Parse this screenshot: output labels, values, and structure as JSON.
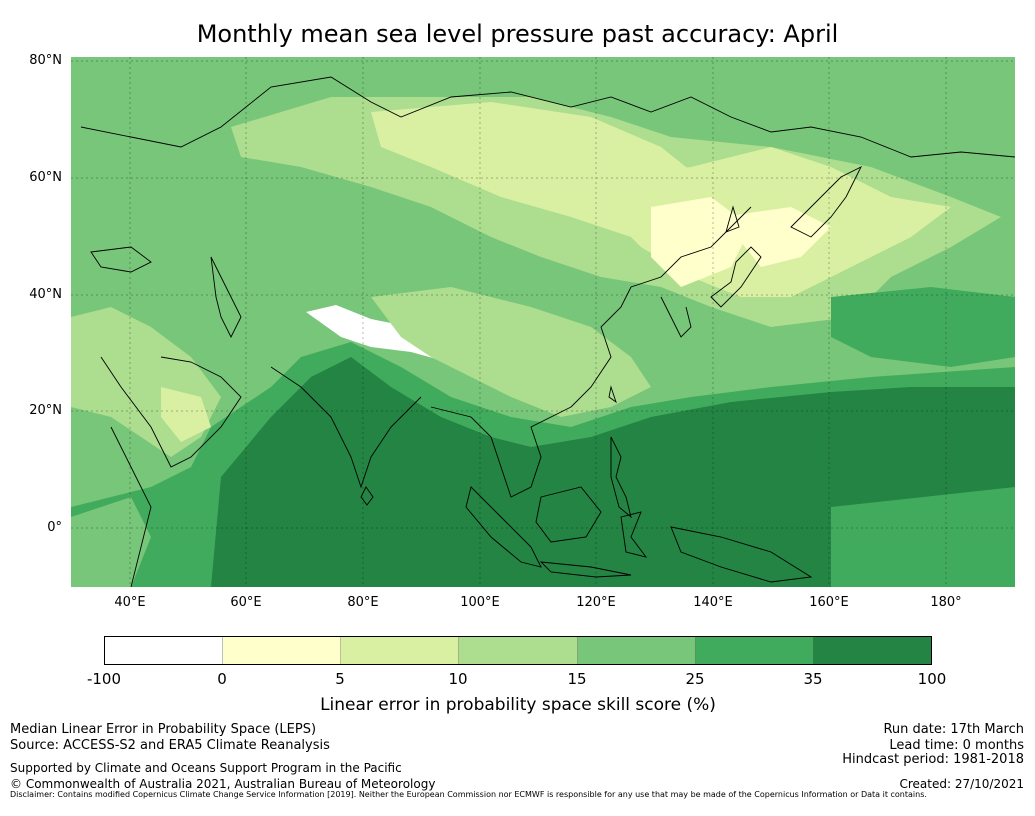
{
  "title": "Monthly mean sea level pressure past accuracy: April",
  "map": {
    "lat_labels": [
      "80°N",
      "60°N",
      "40°N",
      "20°N",
      "0°"
    ],
    "lon_labels": [
      "40°E",
      "60°E",
      "80°E",
      "100°E",
      "120°E",
      "140°E",
      "160°E",
      "180°"
    ]
  },
  "colorbar": {
    "ticks": [
      "-100",
      "0",
      "5",
      "10",
      "15",
      "25",
      "35",
      "100"
    ],
    "colors": [
      "#ffffff",
      "#ffffcc",
      "#d9f0a3",
      "#addd8e",
      "#78c679",
      "#41ab5d",
      "#238443"
    ],
    "label": "Linear error in probability space skill score (%)"
  },
  "footer": {
    "line1": "Median Linear Error in Probability Space (LEPS)",
    "line2": "Source: ACCESS-S2 and ERA5 Climate Reanalysis",
    "support": "Supported by Climate and Oceans Support Program in the Pacific",
    "copyright": "© Commonwealth of Australia 2021, Australian Bureau of Meteorology",
    "run_date": "Run date: 17th March",
    "lead_time": "Lead time: 0 months",
    "hindcast": "Hindcast period: 1981-2018",
    "created": "Created: 27/10/2021",
    "disclaimer": "Disclaimer: Contains modified Copernicus Climate Change Service Information [2019]. Neither the European Commission nor ECMWF is responsible for any use that may be made of the Copernicus Information or Data it contains."
  }
}
